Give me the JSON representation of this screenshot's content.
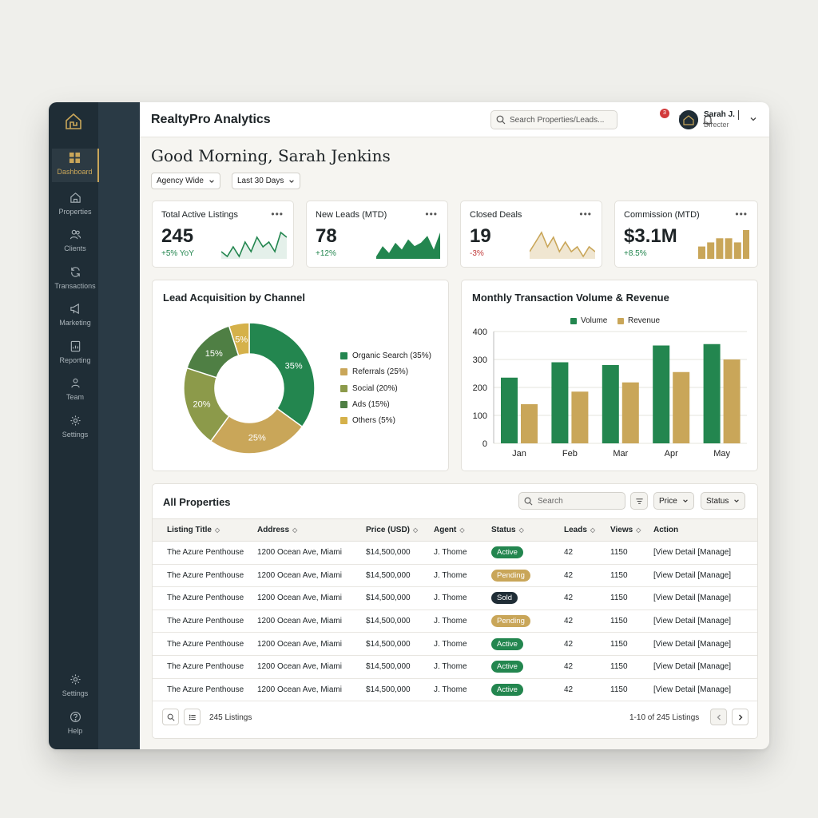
{
  "colors": {
    "green": "#23864f",
    "gold": "#c9a659",
    "olive": "#8c9a4a",
    "dark_green": "#4f7f44",
    "mustard": "#d5b14a",
    "navy": "#1f2d36"
  },
  "header": {
    "title": "RealtyPro Analytics",
    "search_placeholder": "Search Properties/Leads...",
    "notification_count": "3",
    "user": {
      "name": "Sarah J.",
      "role": "Directer"
    }
  },
  "sidebar": {
    "items": [
      {
        "label": "Dashboard",
        "icon": "dashboard-icon"
      },
      {
        "label": "Properties",
        "icon": "home-icon"
      },
      {
        "label": "Clients",
        "icon": "users-icon"
      },
      {
        "label": "Transactions",
        "icon": "refresh-icon"
      },
      {
        "label": "Marketing",
        "icon": "megaphone-icon"
      },
      {
        "label": "Reporting",
        "icon": "report-icon"
      },
      {
        "label": "Team",
        "icon": "team-icon"
      },
      {
        "label": "Settings",
        "icon": "gear-icon"
      }
    ],
    "bottom": [
      {
        "label": "Settings",
        "icon": "gear-icon"
      },
      {
        "label": "Help",
        "icon": "help-icon"
      }
    ]
  },
  "main": {
    "greeting": "Good Morning, Sarah Jenkins",
    "filters": {
      "scope": "Agency Wide",
      "range": "Last 30 Days"
    }
  },
  "kpis": [
    {
      "title": "Total Active Listings",
      "value": "245",
      "delta": "+5% YoY",
      "trend": "up",
      "spark": [
        4,
        3,
        5,
        3,
        6,
        4,
        7,
        5,
        6,
        4,
        8,
        7
      ]
    },
    {
      "title": "New Leads (MTD)",
      "value": "78",
      "delta": "+12%",
      "trend": "up",
      "spark": [
        2,
        5,
        3,
        6,
        4,
        7,
        5,
        6,
        8,
        4,
        9
      ]
    },
    {
      "title": "Closed Deals",
      "value": "19",
      "delta": "-3%",
      "trend": "down",
      "spark": [
        3,
        5,
        7,
        4,
        6,
        3,
        5,
        3,
        4,
        2,
        4,
        3
      ]
    },
    {
      "title": "Commission (MTD)",
      "value": "$3.1M",
      "delta": "+8.5%",
      "trend": "up",
      "spark": [
        3,
        4,
        5,
        5,
        4,
        7
      ]
    }
  ],
  "panels": {
    "donut_title": "Lead Acquisition by Channel",
    "bar_title": "Monthly Transaction Volume & Revenue"
  },
  "chart_data": [
    {
      "type": "pie",
      "title": "Lead Acquisition by Channel",
      "categories": [
        "Organic Search",
        "Referrals",
        "Social",
        "Ads",
        "Others"
      ],
      "values": [
        35,
        25,
        20,
        15,
        5
      ],
      "slice_labels": [
        "35%",
        "25%",
        "20%",
        "15%",
        "5%"
      ],
      "legend": [
        "Organic Search (35%)",
        "Referrals (25%)",
        "Social (20%)",
        "Ads (15%)",
        "Others (5%)"
      ],
      "colors": [
        "#23864f",
        "#c9a659",
        "#8c9a4a",
        "#4f7f44",
        "#d5b14a"
      ]
    },
    {
      "type": "bar",
      "title": "Monthly Transaction Volume & Revenue",
      "categories": [
        "Jan",
        "Feb",
        "Mar",
        "Apr",
        "May"
      ],
      "series": [
        {
          "name": "Volume",
          "values": [
            235,
            290,
            280,
            350,
            355
          ],
          "color": "#23864f"
        },
        {
          "name": "Revenue",
          "values": [
            140,
            185,
            218,
            255,
            300
          ],
          "color": "#c9a659"
        }
      ],
      "yticks": [
        0,
        100,
        200,
        300,
        400
      ],
      "ylim": [
        0,
        400
      ],
      "grid": true,
      "legend_position": "top"
    }
  ],
  "table": {
    "title": "All Properties",
    "search_placeholder": "Search",
    "price_filter": "Price",
    "status_filter": "Status",
    "columns": [
      "Listing Title",
      "Address",
      "Price (USD)",
      "Agent",
      "Status",
      "Leads",
      "Views",
      "Action"
    ],
    "rows": [
      {
        "title": "The Azure Penthouse",
        "address": "1200 Ocean Ave, Miami",
        "price": "$14,500,000",
        "agent": "J. Thome",
        "status": "Active",
        "leads": "42",
        "views": "1150",
        "action": "[View Detail  [Manage]"
      },
      {
        "title": "The Azure Penthouse",
        "address": "1200 Ocean Ave, Miami",
        "price": "$14,500,000",
        "agent": "J. Thome",
        "status": "Pending",
        "leads": "42",
        "views": "1150",
        "action": "[View Detail  [Manage]"
      },
      {
        "title": "The Azure Penthouse",
        "address": "1200 Ocean Ave, Miami",
        "price": "$14,500,000",
        "agent": "J. Thome",
        "status": "Sold",
        "leads": "42",
        "views": "1150",
        "action": "[View Detail  [Manage]"
      },
      {
        "title": "The Azure Penthouse",
        "address": "1200 Ocean Ave, Miami",
        "price": "$14,500,000",
        "agent": "J. Thome",
        "status": "Pending",
        "leads": "42",
        "views": "1150",
        "action": "[View Detail  [Manage]"
      },
      {
        "title": "The Azure Penthouse",
        "address": "1200 Ocean Ave, Miami",
        "price": "$14,500,000",
        "agent": "J. Thome",
        "status": "Active",
        "leads": "42",
        "views": "1150",
        "action": "[View Detail  [Manage]"
      },
      {
        "title": "The Azure Penthouse",
        "address": "1200 Ocean Ave, Miami",
        "price": "$14,500,000",
        "agent": "J. Thome",
        "status": "Active",
        "leads": "42",
        "views": "1150",
        "action": "[View Detail  [Manage]"
      },
      {
        "title": "The Azure Penthouse",
        "address": "1200 Ocean Ave, Miami",
        "price": "$14,500,000",
        "agent": "J. Thome",
        "status": "Active",
        "leads": "42",
        "views": "1150",
        "action": "[View Detail  [Manage]"
      }
    ],
    "footer": {
      "count": "245 Listings",
      "range": "1-10 of 245 Listings"
    }
  }
}
